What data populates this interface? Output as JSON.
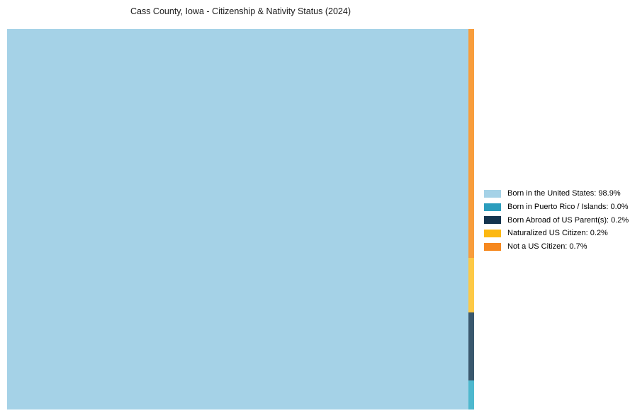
{
  "title": "Cass County, Iowa - Citizenship & Nativity Status (2024)",
  "chart_data": {
    "type": "treemap",
    "title": "Cass County, Iowa - Citizenship & Nativity Status (2024)",
    "unit": "%",
    "legend_position": "right",
    "grid": false,
    "categories": [
      "Born in the United States",
      "Born in Puerto Rico / Islands",
      "Born Abroad of US Parent(s)",
      "Naturalized US Citizen",
      "Not a US Citizen"
    ],
    "values": [
      98.9,
      0.0,
      0.2,
      0.2,
      0.7
    ],
    "colors": [
      "#a5d2e7",
      "#2b9dbd",
      "#14344e",
      "#fcb812",
      "#f6881f"
    ]
  },
  "legend": {
    "items": [
      {
        "label": "Born in the United States: 98.9%",
        "color": "#a5d2e7"
      },
      {
        "label": "Born in Puerto Rico / Islands: 0.0%",
        "color": "#2b9dbd"
      },
      {
        "label": "Born Abroad of US Parent(s): 0.2%",
        "color": "#14344e"
      },
      {
        "label": "Naturalized US Citizen: 0.2%",
        "color": "#fcb812"
      },
      {
        "label": "Not a US Citizen: 0.7%",
        "color": "#f6881f"
      }
    ]
  },
  "treemap": {
    "main": {
      "name": "born-in-the-united-states",
      "value_pct": 98.9,
      "color": "#a5d2e7"
    },
    "strip_segments": [
      {
        "name": "not-a-us-citizen",
        "value_pct": 0.7,
        "height_pct": 60.1,
        "color": "#f89d3c"
      },
      {
        "name": "naturalized-us-citizen",
        "value_pct": 0.2,
        "height_pct": 14.3,
        "color": "#fdc946"
      },
      {
        "name": "born-abroad-of-us-parents",
        "value_pct": 0.2,
        "height_pct": 17.9,
        "color": "#3a586e"
      },
      {
        "name": "born-in-puerto-rico-islands",
        "value_pct": 0.0,
        "height_pct": 7.7,
        "color": "#4eb8ce"
      }
    ]
  }
}
